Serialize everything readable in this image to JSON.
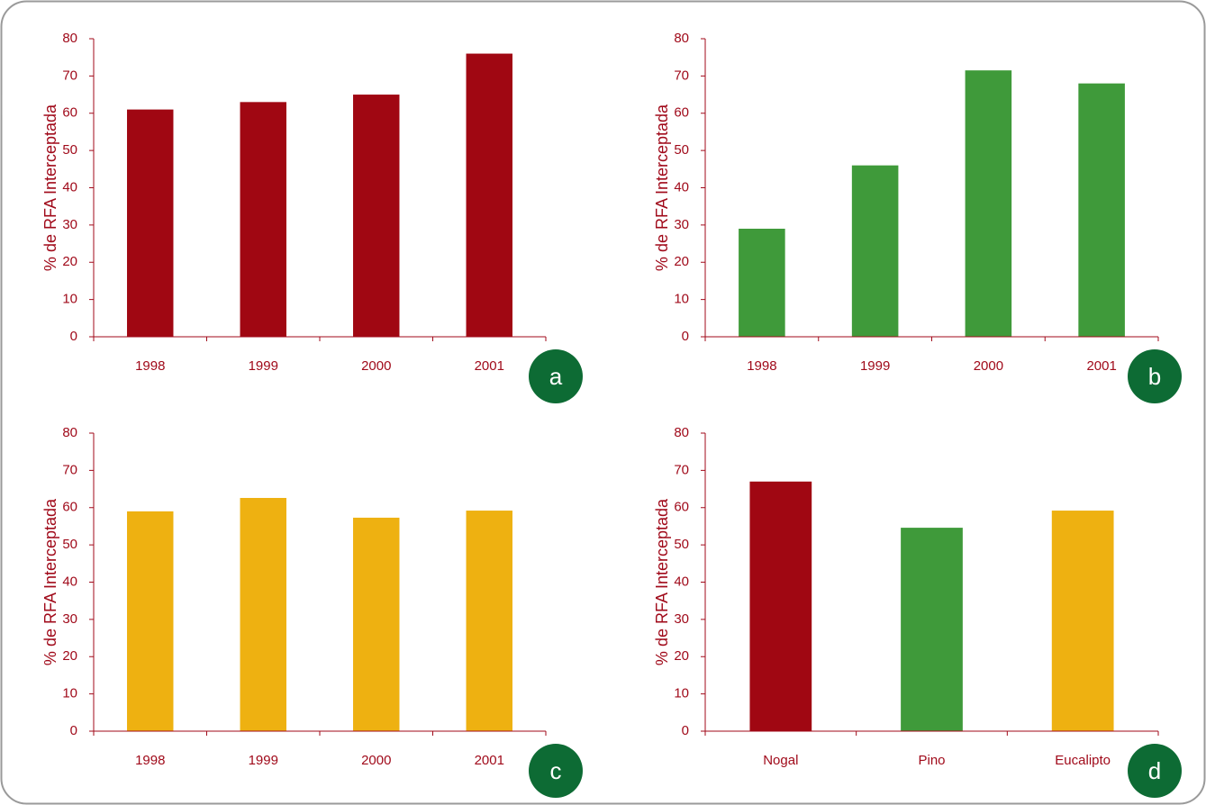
{
  "chart_data": [
    {
      "type": "bar",
      "panel_label": "a",
      "y_label": "% de RFA Interceptada",
      "categories": [
        "1998",
        "1999",
        "2000",
        "2001"
      ],
      "values": [
        61,
        63,
        65,
        76
      ],
      "color": "#a00712",
      "ylim": [
        0,
        80
      ],
      "yticks": [
        0,
        10,
        20,
        30,
        40,
        50,
        60,
        70,
        80
      ]
    },
    {
      "type": "bar",
      "panel_label": "b",
      "y_label": "% de RFA Interceptada",
      "categories": [
        "1998",
        "1999",
        "2000",
        "2001"
      ],
      "values": [
        29,
        46,
        71.5,
        68
      ],
      "color": "#3f9a3a",
      "ylim": [
        0,
        80
      ],
      "yticks": [
        0,
        10,
        20,
        30,
        40,
        50,
        60,
        70,
        80
      ]
    },
    {
      "type": "bar",
      "panel_label": "c",
      "y_label": "% de RFA Interceptada",
      "categories": [
        "1998",
        "1999",
        "2000",
        "2001"
      ],
      "values": [
        59,
        62.6,
        57.3,
        59.2
      ],
      "color": "#eeb111",
      "ylim": [
        0,
        80
      ],
      "yticks": [
        0,
        10,
        20,
        30,
        40,
        50,
        60,
        70,
        80
      ]
    },
    {
      "type": "bar",
      "panel_label": "d",
      "y_label": "% de RFA Interceptada",
      "categories": [
        "Nogal",
        "Pino",
        "Eucalipto"
      ],
      "values": [
        67,
        54.6,
        59.2
      ],
      "colors": [
        "#a00712",
        "#3f9a3a",
        "#eeb111"
      ],
      "ylim": [
        0,
        80
      ],
      "yticks": [
        0,
        10,
        20,
        30,
        40,
        50,
        60,
        70,
        80
      ]
    }
  ]
}
